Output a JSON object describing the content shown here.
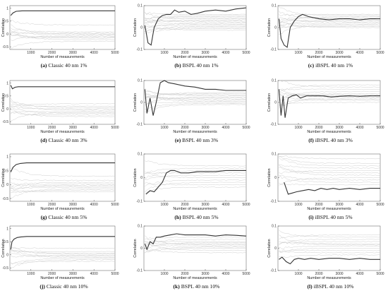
{
  "colors": {
    "highlight": "#333333",
    "background_series": "#c8c8c8",
    "axis": "#555555"
  },
  "chart_data": [
    {
      "id": "a",
      "type": "line",
      "letter": "(a)",
      "caption": "Classic 40 nm 1%",
      "xlabel": "Number of measurements",
      "ylabel": "Correlation",
      "xlim": [
        0,
        5000
      ],
      "ylim": [
        -0.6,
        1.1
      ],
      "xticks": [
        1000,
        2000,
        3000,
        4000,
        5000
      ],
      "yticks": [
        -0.5,
        0,
        0.5,
        1
      ],
      "ytick_labels": [
        "-0.5",
        "0",
        "0.5",
        "1"
      ],
      "highlight": {
        "x": [
          40,
          150,
          300,
          600,
          1000,
          2000,
          3000,
          4000,
          5000
        ],
        "y": [
          0.72,
          0.82,
          0.88,
          0.9,
          0.9,
          0.9,
          0.9,
          0.9,
          0.9
        ]
      },
      "background_levels": [
        0.35,
        0.08,
        0.03,
        0.0,
        -0.04,
        -0.08,
        -0.12,
        -0.16,
        -0.22,
        -0.28
      ]
    },
    {
      "id": "b",
      "type": "line",
      "letter": "(b)",
      "caption": "BSPL 40 nm 1%",
      "xlabel": "Number of measurements",
      "ylabel": "Correlation",
      "xlim": [
        0,
        5000
      ],
      "ylim": [
        -0.1,
        0.1
      ],
      "xticks": [
        1000,
        2000,
        3000,
        4000,
        5000
      ],
      "yticks": [
        -0.1,
        0,
        0.1
      ],
      "ytick_labels": [
        "-0.1",
        "0",
        "0.1"
      ],
      "highlight": {
        "x": [
          50,
          200,
          350,
          500,
          700,
          900,
          1100,
          1300,
          1500,
          1700,
          2000,
          2300,
          2600,
          3000,
          3500,
          4000,
          4500,
          5000
        ],
        "y": [
          0.01,
          -0.07,
          -0.08,
          0.0,
          0.04,
          0.055,
          0.06,
          0.06,
          0.08,
          0.07,
          0.075,
          0.06,
          0.065,
          0.075,
          0.08,
          0.075,
          0.085,
          0.09
        ]
      },
      "background_levels": [
        0.06,
        0.055,
        0.05,
        0.045,
        0.04,
        0.035,
        0.03,
        0.025,
        0.02,
        0.015,
        0.01,
        0.005,
        0.0,
        -0.005,
        -0.012
      ]
    },
    {
      "id": "c",
      "type": "line",
      "letter": "(c)",
      "caption": "iBSPL 40 nm 1%",
      "xlabel": "Number of measurements",
      "ylabel": "Correlation",
      "xlim": [
        0,
        5000
      ],
      "ylim": [
        -0.1,
        0.1
      ],
      "xticks": [
        1000,
        2000,
        3000,
        4000,
        5000
      ],
      "yticks": [
        -0.1,
        0,
        0.1
      ],
      "ytick_labels": [
        "-0.1",
        "0",
        "0.1"
      ],
      "highlight": {
        "x": [
          50,
          150,
          300,
          450,
          600,
          800,
          1000,
          1200,
          1500,
          2000,
          2500,
          3000,
          3500,
          4000,
          4500,
          5000
        ],
        "y": [
          0.04,
          -0.05,
          -0.08,
          -0.09,
          0.0,
          0.03,
          0.05,
          0.06,
          0.05,
          0.04,
          0.035,
          0.04,
          0.04,
          0.035,
          0.04,
          0.04
        ]
      },
      "background_levels": [
        0.06,
        0.055,
        0.05,
        0.045,
        0.04,
        0.035,
        0.03,
        0.025,
        0.02,
        0.015,
        0.01,
        0.005,
        0.0
      ]
    },
    {
      "id": "d",
      "type": "line",
      "letter": "(d)",
      "caption": "Classic 40 nm 3%",
      "xlabel": "Number of measurements",
      "ylabel": "Correlation",
      "xlim": [
        0,
        5000
      ],
      "ylim": [
        -0.6,
        1.1
      ],
      "xticks": [
        1000,
        2000,
        3000,
        4000,
        5000
      ],
      "yticks": [
        -0.5,
        0,
        0.5,
        1
      ],
      "ytick_labels": [
        "-0.5",
        "0",
        "0.5",
        "1"
      ],
      "highlight": {
        "x": [
          40,
          120,
          250,
          400,
          600,
          1000,
          2000,
          3000,
          4000,
          5000
        ],
        "y": [
          0.92,
          0.78,
          0.84,
          0.86,
          0.86,
          0.86,
          0.86,
          0.86,
          0.86,
          0.86
        ]
      },
      "background_levels": [
        0.2,
        0.1,
        0.05,
        0.0,
        -0.05,
        -0.1,
        -0.14,
        -0.18,
        -0.24,
        -0.3
      ]
    },
    {
      "id": "e",
      "type": "line",
      "letter": "(e)",
      "caption": "BSPL 40 nm 3%",
      "xlabel": "Number of measurements",
      "ylabel": "Correlation",
      "xlim": [
        0,
        5000
      ],
      "ylim": [
        -0.1,
        0.1
      ],
      "xticks": [
        1000,
        2000,
        3000,
        4000,
        5000
      ],
      "yticks": [
        -0.1,
        0,
        0.1
      ],
      "ytick_labels": [
        "-0.1",
        "0",
        "0.1"
      ],
      "highlight": {
        "x": [
          50,
          150,
          300,
          450,
          600,
          800,
          1000,
          1200,
          1500,
          2000,
          2500,
          3000,
          3500,
          4000,
          4500,
          5000
        ],
        "y": [
          0.06,
          -0.05,
          0.02,
          -0.06,
          0.0,
          0.09,
          0.1,
          0.09,
          0.085,
          0.075,
          0.07,
          0.06,
          0.06,
          0.055,
          0.055,
          0.055
        ]
      },
      "background_levels": [
        0.045,
        0.04,
        0.035,
        0.03,
        0.025,
        0.02,
        0.015,
        0.01,
        0.005,
        0.0,
        -0.005,
        -0.01
      ]
    },
    {
      "id": "f",
      "type": "line",
      "letter": "(f)",
      "caption": "iBSPL 40 nm 3%",
      "xlabel": "Number of measurements",
      "ylabel": "Correlation",
      "xlim": [
        0,
        5000
      ],
      "ylim": [
        -0.1,
        0.1
      ],
      "xticks": [
        1000,
        2000,
        3000,
        4000,
        5000
      ],
      "yticks": [
        -0.1,
        0,
        0.1
      ],
      "ytick_labels": [
        "-0.1",
        "0",
        "0.1"
      ],
      "highlight": {
        "x": [
          50,
          150,
          250,
          350,
          500,
          700,
          900,
          1100,
          1400,
          1800,
          2200,
          2600,
          3000,
          3500,
          4000,
          4500,
          5000
        ],
        "y": [
          0.06,
          -0.06,
          0.03,
          -0.07,
          0.02,
          0.03,
          0.035,
          0.02,
          0.03,
          0.03,
          0.03,
          0.025,
          0.028,
          0.03,
          0.028,
          0.03,
          0.03
        ]
      },
      "background_levels": [
        0.08,
        0.07,
        0.06,
        0.05,
        0.04,
        0.035,
        0.03,
        0.025,
        0.02,
        0.015,
        0.01,
        0.0
      ]
    },
    {
      "id": "g",
      "type": "line",
      "letter": "(g)",
      "caption": "Classic 40 nm 5%",
      "xlabel": "Number of measurements",
      "ylabel": "Correlation",
      "xlim": [
        0,
        5000
      ],
      "ylim": [
        -0.6,
        1.1
      ],
      "xticks": [
        1000,
        2000,
        3000,
        4000,
        5000
      ],
      "yticks": [
        -0.5,
        0,
        0.5,
        1
      ],
      "ytick_labels": [
        "-0.5",
        "0",
        "0.5",
        "1"
      ],
      "highlight": {
        "x": [
          40,
          150,
          300,
          500,
          800,
          1200,
          2000,
          3000,
          4000,
          5000
        ],
        "y": [
          0.45,
          0.62,
          0.72,
          0.76,
          0.78,
          0.78,
          0.78,
          0.78,
          0.78,
          0.78
        ]
      },
      "background_levels": [
        0.3,
        0.15,
        0.08,
        0.03,
        -0.02,
        -0.06,
        -0.1,
        -0.15,
        -0.2,
        -0.26
      ]
    },
    {
      "id": "h",
      "type": "line",
      "letter": "(h)",
      "caption": "BSPL 40 nm 5%",
      "xlabel": "Number of measurements",
      "ylabel": "Correlation",
      "xlim": [
        0,
        5000
      ],
      "ylim": [
        -0.1,
        0.1
      ],
      "xticks": [
        1000,
        2000,
        3000,
        4000,
        5000
      ],
      "yticks": [
        -0.1,
        0,
        0.1
      ],
      "ytick_labels": [
        "-0.1",
        "0",
        "0.1"
      ],
      "highlight": {
        "x": [
          100,
          300,
          500,
          700,
          900,
          1100,
          1300,
          1500,
          1800,
          2200,
          2600,
          3000,
          3500,
          4000,
          4500,
          5000
        ],
        "y": [
          -0.07,
          -0.055,
          -0.06,
          -0.04,
          -0.02,
          0.02,
          0.03,
          0.03,
          0.02,
          0.02,
          0.025,
          0.025,
          0.025,
          0.03,
          0.03,
          0.03
        ]
      },
      "background_levels": [
        0.05,
        0.04,
        0.03,
        0.02,
        0.01,
        0.0,
        -0.01,
        -0.02,
        -0.03,
        -0.04
      ]
    },
    {
      "id": "i",
      "type": "line",
      "letter": "(i)",
      "caption": "iBSPL 40 nm 5%",
      "xlabel": "Number of measurements",
      "ylabel": "Correlation",
      "xlim": [
        0,
        5000
      ],
      "ylim": [
        -0.1,
        0.1
      ],
      "xticks": [
        1000,
        2000,
        3000,
        4000,
        5000
      ],
      "yticks": [
        -0.1,
        0,
        0.1
      ],
      "ytick_labels": [
        "-0.1",
        "0",
        "0.1"
      ],
      "highlight": {
        "x": [
          300,
          500,
          700,
          900,
          1200,
          1500,
          1800,
          2100,
          2400,
          2700,
          3000,
          3500,
          4000,
          4500,
          5000
        ],
        "y": [
          -0.02,
          -0.07,
          -0.065,
          -0.06,
          -0.055,
          -0.05,
          -0.055,
          -0.045,
          -0.05,
          -0.045,
          -0.05,
          -0.045,
          -0.05,
          -0.045,
          -0.045
        ]
      },
      "background_levels": [
        0.08,
        0.06,
        0.05,
        0.04,
        0.03,
        0.02,
        0.01,
        0.0,
        -0.01,
        -0.02,
        -0.03
      ]
    },
    {
      "id": "j",
      "type": "line",
      "letter": "(j)",
      "caption": "Classic 40 nm 10%",
      "xlabel": "Number of measurements",
      "ylabel": "Correlation",
      "xlim": [
        0,
        5000
      ],
      "ylim": [
        -0.6,
        1.1
      ],
      "xticks": [
        1000,
        2000,
        3000,
        4000,
        5000
      ],
      "yticks": [
        -0.5,
        0,
        0.5,
        1
      ],
      "ytick_labels": [
        "-0.5",
        "0",
        "0.5",
        "1"
      ],
      "highlight": {
        "x": [
          40,
          100,
          200,
          350,
          500,
          800,
          1200,
          2000,
          3000,
          4000,
          5000
        ],
        "y": [
          0.2,
          0.5,
          0.6,
          0.66,
          0.68,
          0.7,
          0.7,
          0.7,
          0.7,
          0.7,
          0.7
        ]
      },
      "background_levels": [
        0.25,
        0.12,
        0.06,
        0.02,
        -0.02,
        -0.06,
        -0.1,
        -0.14,
        -0.19,
        -0.25
      ]
    },
    {
      "id": "k",
      "type": "line",
      "letter": "(k)",
      "caption": "BSPL 40 nm 10%",
      "xlabel": "Number of measurements",
      "ylabel": "Correlation",
      "xlim": [
        0,
        5000
      ],
      "ylim": [
        -0.1,
        0.1
      ],
      "xticks": [
        1000,
        2000,
        3000,
        4000,
        5000
      ],
      "yticks": [
        -0.1,
        0,
        0.1
      ],
      "ytick_labels": [
        "-0.1",
        "0",
        "0.1"
      ],
      "highlight": {
        "x": [
          50,
          150,
          300,
          450,
          600,
          800,
          1000,
          1300,
          1600,
          2000,
          2500,
          3000,
          3500,
          4000,
          4500,
          5000
        ],
        "y": [
          0.02,
          -0.005,
          0.03,
          0.02,
          0.05,
          0.05,
          0.055,
          0.06,
          0.065,
          0.06,
          0.06,
          0.06,
          0.055,
          0.06,
          0.058,
          0.055
        ]
      },
      "background_levels": [
        0.05,
        0.04,
        0.03,
        0.025,
        0.02,
        0.015,
        0.01,
        0.005,
        0.0,
        -0.01,
        -0.02
      ]
    },
    {
      "id": "l",
      "type": "line",
      "letter": "(l)",
      "caption": "iBSPL 40 nm 10%",
      "xlabel": "Number of measurements",
      "ylabel": "Correlation",
      "xlim": [
        0,
        5000
      ],
      "ylim": [
        -0.1,
        0.1
      ],
      "xticks": [
        1000,
        2000,
        3000,
        4000,
        5000
      ],
      "yticks": [
        -0.1,
        0,
        0.1
      ],
      "ytick_labels": [
        "-0.1",
        "0",
        "0.1"
      ],
      "highlight": {
        "x": [
          50,
          200,
          400,
          600,
          800,
          1000,
          1300,
          1600,
          2000,
          2500,
          3000,
          3500,
          4000,
          4500,
          5000
        ],
        "y": [
          -0.05,
          -0.04,
          -0.06,
          -0.07,
          -0.05,
          -0.045,
          -0.05,
          -0.045,
          -0.05,
          -0.045,
          -0.045,
          -0.05,
          -0.045,
          -0.05,
          -0.05
        ]
      },
      "background_levels": [
        0.06,
        0.05,
        0.04,
        0.03,
        0.02,
        0.015,
        0.01,
        0.0,
        -0.01,
        -0.02,
        -0.03
      ]
    }
  ]
}
